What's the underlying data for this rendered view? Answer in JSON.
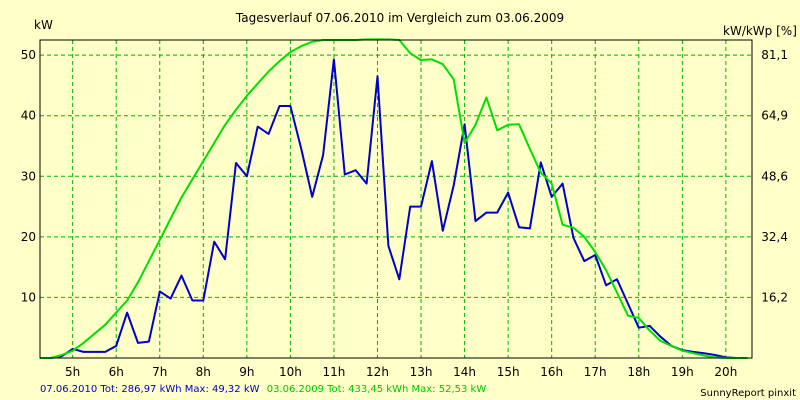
{
  "window": {
    "title": "Tagesverlauf 07.06.2010 im Vergleich zum 03.06.2009"
  },
  "footer": {
    "left_part1": "07.06.2010 Tot: 286,97 kWh Max: 49,32 kW",
    "left_part2": "03.06.2009 Tot: 433,45 kWh Max: 52,53 kW",
    "right": "SunnyReport pinxit"
  },
  "colors": {
    "background": "#ffffc8",
    "plot_background": "#ffffc8",
    "grid": "#00b400",
    "series_2010": "#0000c8",
    "series_2009": "#00e000",
    "axis": "#000000"
  },
  "chart_data": {
    "type": "line",
    "title": "Tagesverlauf 07.06.2010 im Vergleich zum 03.06.2009",
    "ylabel_left": "kW",
    "ylabel_right": "kW/kWp [%]",
    "xlabel": "",
    "x_range_hours": [
      4.25,
      20.6
    ],
    "ylim": [
      0,
      52.5
    ],
    "x_ticks": [
      {
        "h": 5,
        "label": "5h"
      },
      {
        "h": 6,
        "label": "6h"
      },
      {
        "h": 7,
        "label": "7h"
      },
      {
        "h": 8,
        "label": "8h"
      },
      {
        "h": 9,
        "label": "9h"
      },
      {
        "h": 10,
        "label": "10h"
      },
      {
        "h": 11,
        "label": "11h"
      },
      {
        "h": 12,
        "label": "12h"
      },
      {
        "h": 13,
        "label": "13h"
      },
      {
        "h": 14,
        "label": "14h"
      },
      {
        "h": 15,
        "label": "15h"
      },
      {
        "h": 16,
        "label": "16h"
      },
      {
        "h": 17,
        "label": "17h"
      },
      {
        "h": 18,
        "label": "18h"
      },
      {
        "h": 19,
        "label": "19h"
      },
      {
        "h": 20,
        "label": "20h"
      }
    ],
    "y_ticks_left": [
      {
        "v": 10,
        "label": "10"
      },
      {
        "v": 20,
        "label": "20"
      },
      {
        "v": 30,
        "label": "30"
      },
      {
        "v": 40,
        "label": "40"
      },
      {
        "v": 50,
        "label": "50"
      }
    ],
    "y_ticks_right": [
      {
        "v": 10,
        "label": "16,2"
      },
      {
        "v": 20,
        "label": "32,4"
      },
      {
        "v": 30,
        "label": "48,6"
      },
      {
        "v": 40,
        "label": "64,9"
      },
      {
        "v": 50,
        "label": "81,1"
      }
    ],
    "grid": true,
    "series": [
      {
        "name": "07.06.2010",
        "color": "#0000c8",
        "x": [
          4.25,
          4.5,
          4.75,
          5.0,
          5.25,
          5.5,
          5.75,
          6.0,
          6.25,
          6.5,
          6.75,
          7.0,
          7.25,
          7.5,
          7.75,
          8.0,
          8.25,
          8.5,
          8.75,
          9.0,
          9.25,
          9.5,
          9.75,
          10.0,
          10.25,
          10.5,
          10.75,
          11.0,
          11.25,
          11.5,
          11.75,
          12.0,
          12.25,
          12.5,
          12.75,
          13.0,
          13.25,
          13.5,
          13.75,
          14.0,
          14.25,
          14.5,
          14.75,
          15.0,
          15.25,
          15.5,
          15.75,
          16.0,
          16.25,
          16.5,
          16.75,
          17.0,
          17.25,
          17.5,
          17.75,
          18.0,
          18.25,
          18.5,
          18.75,
          19.0,
          19.25,
          19.5,
          19.75,
          20.0,
          20.25,
          20.5
        ],
        "y": [
          0,
          0,
          0.3,
          1.5,
          1.0,
          1.0,
          1.0,
          2.0,
          7.5,
          2.5,
          2.7,
          11.0,
          9.8,
          13.6,
          9.5,
          9.5,
          19.2,
          16.3,
          32.2,
          30.0,
          38.2,
          37.0,
          41.6,
          41.6,
          34.5,
          26.6,
          33.5,
          49.3,
          30.3,
          31.0,
          28.8,
          46.5,
          18.5,
          13.0,
          25.0,
          25.0,
          32.5,
          21.0,
          28.5,
          38.6,
          22.6,
          24.0,
          24.0,
          27.3,
          21.6,
          21.4,
          32.3,
          26.6,
          28.8,
          19.8,
          16.0,
          17.0,
          12.0,
          13.0,
          9.0,
          5.0,
          5.3,
          3.5,
          2.0,
          1.3,
          1.0,
          0.8,
          0.5,
          0.1,
          0,
          0
        ]
      },
      {
        "name": "03.06.2009",
        "color": "#00e000",
        "x": [
          4.25,
          4.5,
          4.75,
          5.0,
          5.25,
          5.5,
          5.75,
          6.0,
          6.25,
          6.5,
          6.75,
          7.0,
          7.25,
          7.5,
          7.75,
          8.0,
          8.25,
          8.5,
          8.75,
          9.0,
          9.25,
          9.5,
          9.75,
          10.0,
          10.25,
          10.5,
          10.75,
          11.0,
          11.25,
          11.5,
          11.75,
          12.0,
          12.25,
          12.5,
          12.75,
          13.0,
          13.25,
          13.5,
          13.75,
          14.0,
          14.25,
          14.5,
          14.75,
          15.0,
          15.25,
          15.5,
          15.75,
          16.0,
          16.25,
          16.5,
          16.75,
          17.0,
          17.25,
          17.5,
          17.75,
          18.0,
          18.25,
          18.5,
          18.75,
          19.0,
          19.25,
          19.5,
          19.75,
          20.0,
          20.25,
          20.5
        ],
        "y": [
          0,
          0,
          0.5,
          1.2,
          2.5,
          4.0,
          5.5,
          7.5,
          9.5,
          12.5,
          16.0,
          19.5,
          23.0,
          26.5,
          29.5,
          32.5,
          35.5,
          38.5,
          41.0,
          43.3,
          45.3,
          47.3,
          49.0,
          50.5,
          51.5,
          52.2,
          52.5,
          52.5,
          52.5,
          52.5,
          52.6,
          52.6,
          52.6,
          52.5,
          50.3,
          49.2,
          49.3,
          48.5,
          46.0,
          35.5,
          38.5,
          43.0,
          37.6,
          38.5,
          38.6,
          34.5,
          30.6,
          28.8,
          22.0,
          21.5,
          20.0,
          17.5,
          14.5,
          10.8,
          7.0,
          6.6,
          4.5,
          2.8,
          2.0,
          1.2,
          0.8,
          0.4,
          0.1,
          0,
          0,
          0
        ]
      }
    ]
  }
}
